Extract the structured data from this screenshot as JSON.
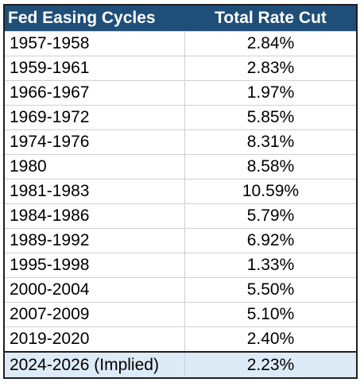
{
  "table": {
    "headers": [
      "Fed Easing Cycles",
      "Total Rate Cut"
    ],
    "rows": [
      [
        "1957-1958",
        "2.84%"
      ],
      [
        "1959-1961",
        "2.83%"
      ],
      [
        "1966-1967",
        "1.97%"
      ],
      [
        "1969-1972",
        "5.85%"
      ],
      [
        "1974-1976",
        "8.31%"
      ],
      [
        "1980",
        "8.58%"
      ],
      [
        "1981-1983",
        "10.59%"
      ],
      [
        "1984-1986",
        "5.79%"
      ],
      [
        "1989-1992",
        "6.92%"
      ],
      [
        "1995-1998",
        "1.33%"
      ],
      [
        "2000-2004",
        "5.50%"
      ],
      [
        "2007-2009",
        "5.10%"
      ],
      [
        "2019-2020",
        "2.40%"
      ]
    ],
    "highlight_row": [
      "2024-2026 (Implied)",
      "2.23%"
    ],
    "colors": {
      "header_bg": "#1f4e79",
      "header_text": "#ffffff",
      "highlight_bg": "#ddebf7"
    }
  },
  "chart_data": {
    "type": "table",
    "columns": [
      "Fed Easing Cycles",
      "Total Rate Cut"
    ],
    "rows": [
      [
        "1957-1958",
        2.84
      ],
      [
        "1959-1961",
        2.83
      ],
      [
        "1966-1967",
        1.97
      ],
      [
        "1969-1972",
        5.85
      ],
      [
        "1974-1976",
        8.31
      ],
      [
        "1980",
        8.58
      ],
      [
        "1981-1983",
        10.59
      ],
      [
        "1984-1986",
        5.79
      ],
      [
        "1989-1992",
        6.92
      ],
      [
        "1995-1998",
        1.33
      ],
      [
        "2000-2004",
        5.5
      ],
      [
        "2007-2009",
        5.1
      ],
      [
        "2019-2020",
        2.4
      ],
      [
        "2024-2026 (Implied)",
        2.23
      ]
    ]
  }
}
